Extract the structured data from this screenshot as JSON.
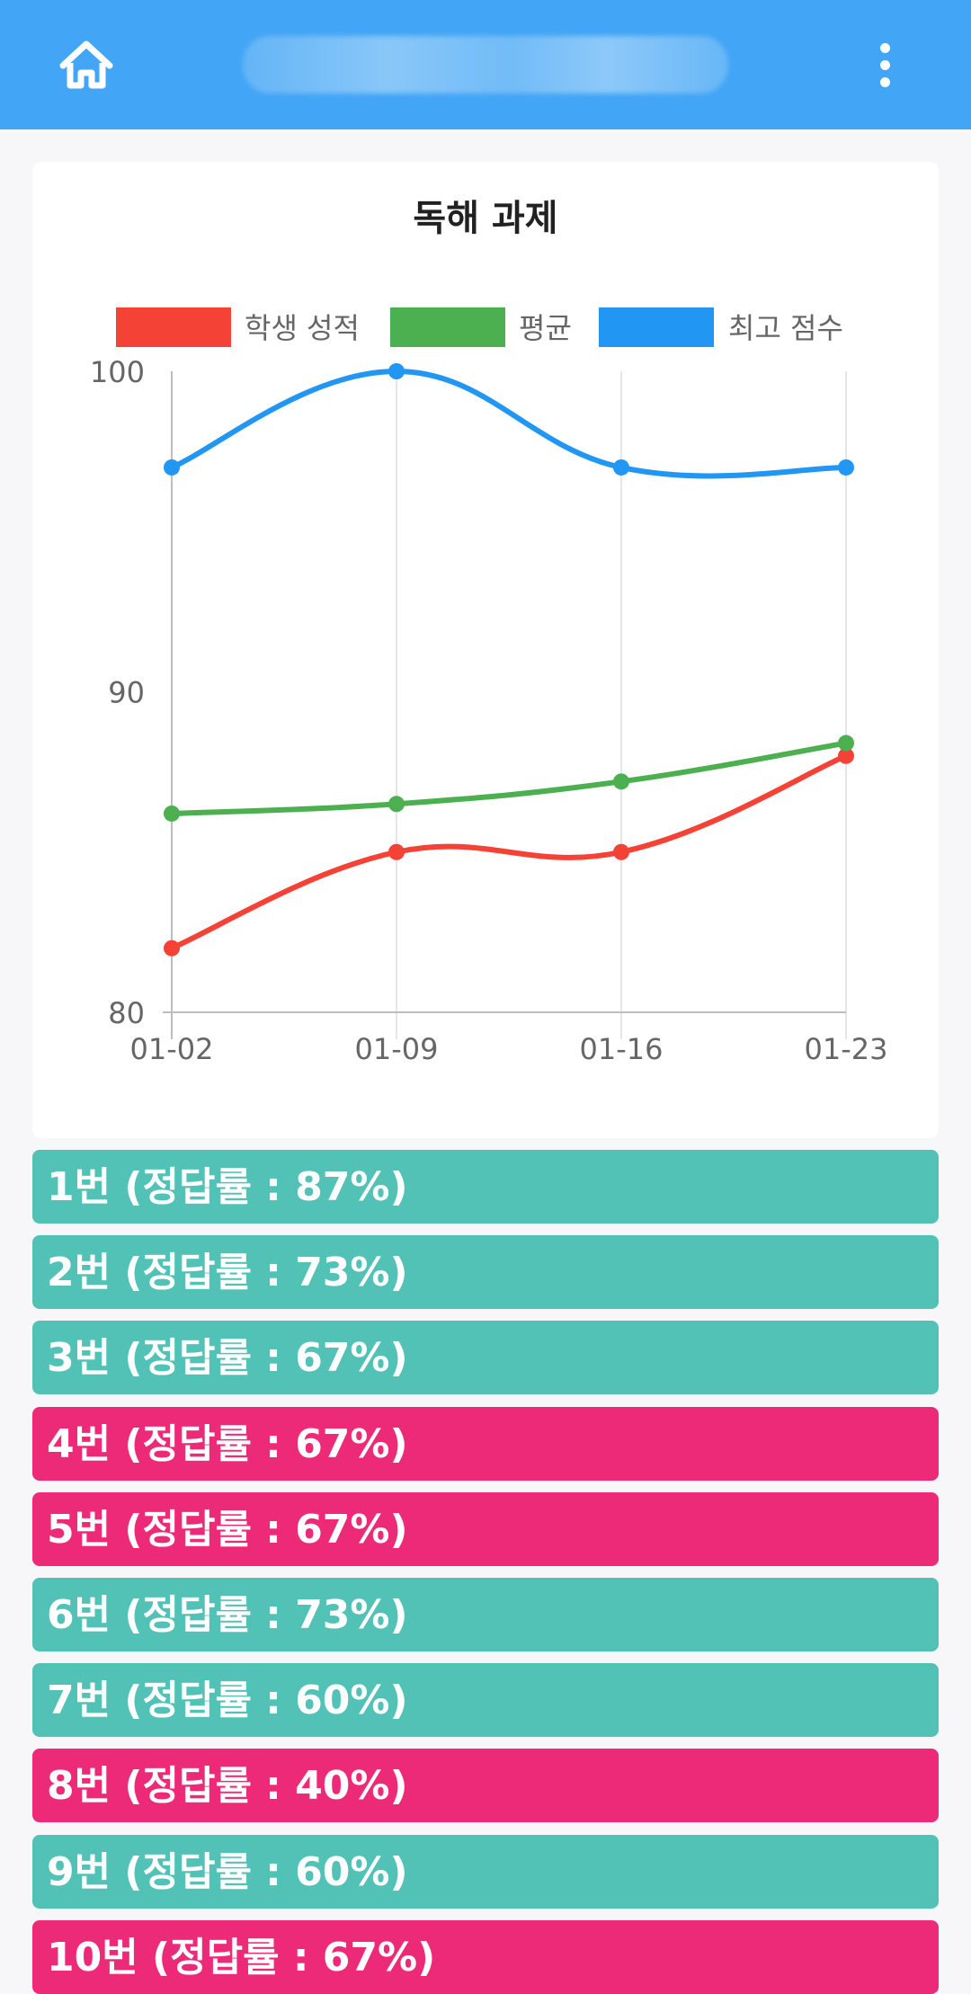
{
  "appbar": {
    "title": "",
    "home_icon": "home-icon",
    "menu_icon": "more-vert-icon",
    "color": "#42a5f5"
  },
  "chart_data": {
    "type": "line",
    "title": "독해 과제",
    "categories": [
      "01-02",
      "01-09",
      "01-16",
      "01-23"
    ],
    "series": [
      {
        "name": "학생 성적",
        "color": "#f44336",
        "values": [
          82,
          85,
          85,
          88
        ]
      },
      {
        "name": "평균",
        "color": "#4caf50",
        "values": [
          86.2,
          86.5,
          87.2,
          88.4
        ]
      },
      {
        "name": "최고 점수",
        "color": "#2196f3",
        "values": [
          97,
          100,
          97,
          97
        ]
      }
    ],
    "ylim": [
      80,
      100
    ],
    "yticks": [
      80,
      90,
      100
    ],
    "xlabel": "",
    "ylabel": "",
    "legend": "top",
    "grid": true,
    "smooth": true
  },
  "questions": [
    {
      "label": "1번 (정답률 : 87%)",
      "status": "correct"
    },
    {
      "label": "2번 (정답률 : 73%)",
      "status": "correct"
    },
    {
      "label": "3번 (정답률 : 67%)",
      "status": "correct"
    },
    {
      "label": "4번 (정답률 : 67%)",
      "status": "wrong"
    },
    {
      "label": "5번 (정답률 : 67%)",
      "status": "wrong"
    },
    {
      "label": "6번 (정답률 : 73%)",
      "status": "correct"
    },
    {
      "label": "7번 (정답률 : 60%)",
      "status": "correct"
    },
    {
      "label": "8번 (정답률 : 40%)",
      "status": "wrong"
    },
    {
      "label": "9번 (정답률 : 60%)",
      "status": "correct"
    },
    {
      "label": "10번 (정답률 : 67%)",
      "status": "wrong"
    }
  ],
  "colors": {
    "correct": "#52c1b6",
    "wrong": "#ec2a78"
  }
}
